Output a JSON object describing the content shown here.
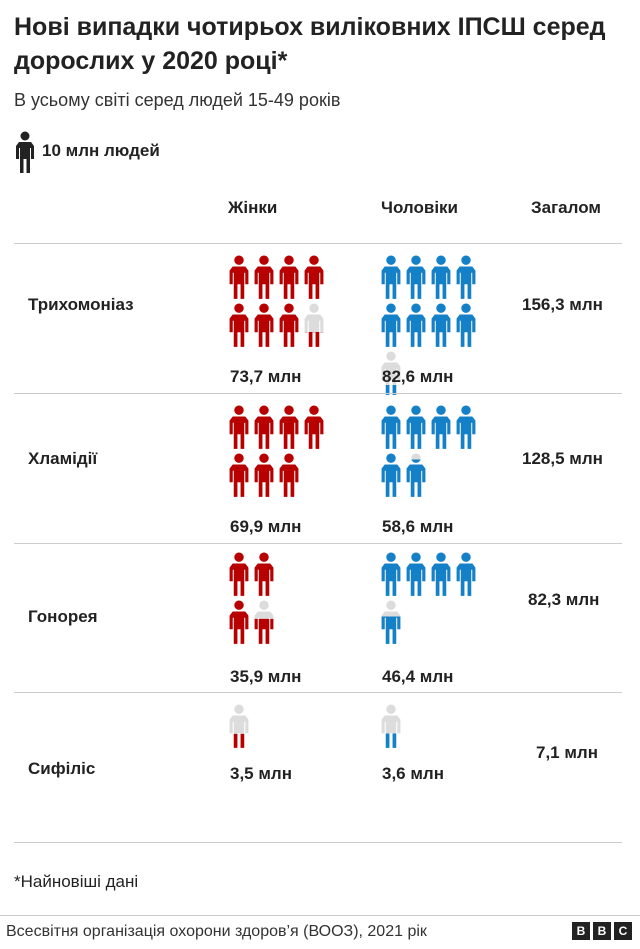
{
  "title": "Нові випадки чотирьох виліковних ІПСШ серед дорослих у 2020 році*",
  "subtitle": "В усьому світі серед людей 15-49 років",
  "legend": {
    "icon": "person-icon",
    "label": "10 млн людей",
    "unit_value": 10
  },
  "colors": {
    "women": "#b80000",
    "men": "#1380c8",
    "empty": "#dcdcdc",
    "legend": "#222222"
  },
  "chart_data": {
    "type": "pictogram",
    "title": "Нові випадки чотирьох виліковних ІПСШ серед дорослих у 2020 році*",
    "unit": "млн",
    "columns": [
      "Жінки",
      "Чоловіки",
      "Загалом"
    ],
    "rows": [
      {
        "label": "Трихомоніаз",
        "women": 73.7,
        "men": 82.6,
        "total": 156.3,
        "women_text": "73,7 млн",
        "men_text": "82,6 млн",
        "total_text": "156,3 млн"
      },
      {
        "label": "Хламідії",
        "women": 69.9,
        "men": 58.6,
        "total": 128.5,
        "women_text": "69,9 млн",
        "men_text": "58,6 млн",
        "total_text": "128,5 млн"
      },
      {
        "label": "Гонорея",
        "women": 35.9,
        "men": 46.4,
        "total": 82.3,
        "women_text": "35,9 млн",
        "men_text": "46,4 млн",
        "total_text": "82,3 млн"
      },
      {
        "label": "Сифіліс",
        "women": 3.5,
        "men": 3.6,
        "total": 7.1,
        "women_text": "3,5 млн",
        "men_text": "3,6 млн",
        "total_text": "7,1 млн"
      }
    ]
  },
  "footnote": "*Найновіші дані",
  "source": "Всесвітня організація охорони здоров’я (ВООЗ), 2021 рік",
  "logo": [
    "B",
    "B",
    "C"
  ]
}
